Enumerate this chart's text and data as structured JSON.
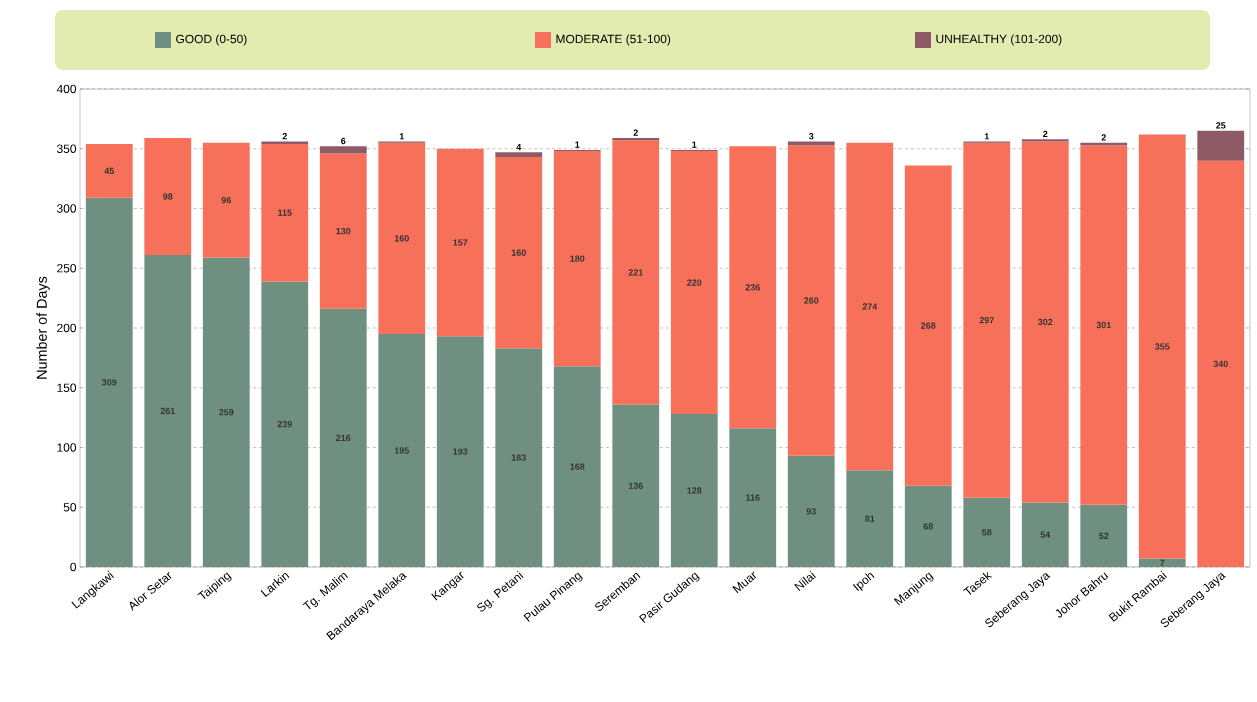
{
  "chart_data": {
    "type": "bar",
    "stacked": true,
    "ylabel": "Number of Days",
    "categories": [
      "Langkawi",
      "Alor Setar",
      "Taiping",
      "Larkin",
      "Tg. Malim",
      "Bandaraya Melaka",
      "Kangar",
      "Sg. Petani",
      "Pulau Pinang",
      "Seremban",
      "Pasir Gudang",
      "Muar",
      "Nilai",
      "Ipoh",
      "Manjung",
      "Tasek",
      "Seberang Jaya",
      "Johor Bahru",
      "Bukit Rambai",
      "Seberang Jaya"
    ],
    "series": [
      {
        "name": "GOOD (0-50)",
        "color": "#6f9080",
        "values": [
          309,
          261,
          259,
          239,
          216,
          195,
          193,
          183,
          168,
          136,
          128,
          116,
          93,
          81,
          68,
          58,
          54,
          52,
          7,
          null
        ]
      },
      {
        "name": "MODERATE (51-100)",
        "color": "#f7705a",
        "values": [
          45,
          98,
          96,
          115,
          130,
          160,
          157,
          160,
          180,
          221,
          220,
          236,
          260,
          274,
          268,
          297,
          302,
          301,
          355,
          340
        ]
      },
      {
        "name": "UNHEALTHY (101-200)",
        "color": "#8e5a66",
        "values": [
          null,
          null,
          null,
          2,
          6,
          1,
          null,
          4,
          1,
          2,
          1,
          null,
          3,
          null,
          null,
          1,
          2,
          2,
          null,
          25
        ]
      }
    ],
    "ylim": [
      0,
      400
    ],
    "yticks": [
      0,
      50,
      100,
      150,
      200,
      250,
      300,
      350,
      400
    ],
    "grid": "y",
    "legend": "top",
    "data_labels": true
  }
}
